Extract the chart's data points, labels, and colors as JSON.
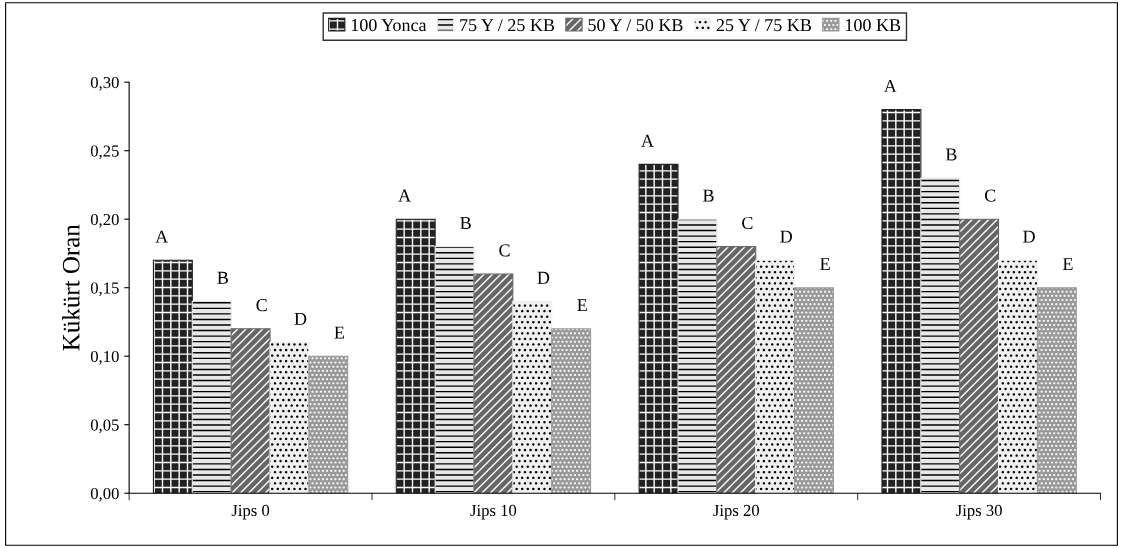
{
  "chart_data": {
    "type": "bar",
    "ylabel": "Kükürt Oran",
    "categories": [
      "Jips 0",
      "Jips 10",
      "Jips 20",
      "Jips 30"
    ],
    "series": [
      {
        "name": "100 Yonca",
        "color": "#222222",
        "values": [
          0.17,
          0.2,
          0.24,
          0.28
        ],
        "value_labels": [
          "A",
          "A",
          "A",
          "A"
        ]
      },
      {
        "name": "75 Y / 25 KB",
        "color": "#e8e8e8",
        "values": [
          0.14,
          0.18,
          0.2,
          0.23
        ],
        "value_labels": [
          "B",
          "B",
          "B",
          "B"
        ]
      },
      {
        "name": "50 Y / 50 KB",
        "color": "#666666",
        "values": [
          0.12,
          0.16,
          0.18,
          0.2
        ],
        "value_labels": [
          "C",
          "C",
          "C",
          "C"
        ]
      },
      {
        "name": "25 Y / 75 KB",
        "color": "#f0f0f0",
        "values": [
          0.11,
          0.14,
          0.17,
          0.17
        ],
        "value_labels": [
          "D",
          "D",
          "D",
          "D"
        ]
      },
      {
        "name": "100 KB",
        "color": "#999999",
        "values": [
          0.1,
          0.12,
          0.15,
          0.15
        ],
        "value_labels": [
          "E",
          "E",
          "E",
          "E"
        ]
      }
    ],
    "ylim": [
      0,
      0.3
    ],
    "yticks": [
      {
        "value": 0,
        "label": "0,00"
      },
      {
        "value": 0.05,
        "label": "0,05"
      },
      {
        "value": 0.1,
        "label": "0,10"
      },
      {
        "value": 0.15,
        "label": "0,15"
      },
      {
        "value": 0.2,
        "label": "0,20"
      },
      {
        "value": 0.25,
        "label": "0,25"
      },
      {
        "value": 0.3,
        "label": "0,30"
      }
    ],
    "grid": false,
    "legend": "top"
  }
}
